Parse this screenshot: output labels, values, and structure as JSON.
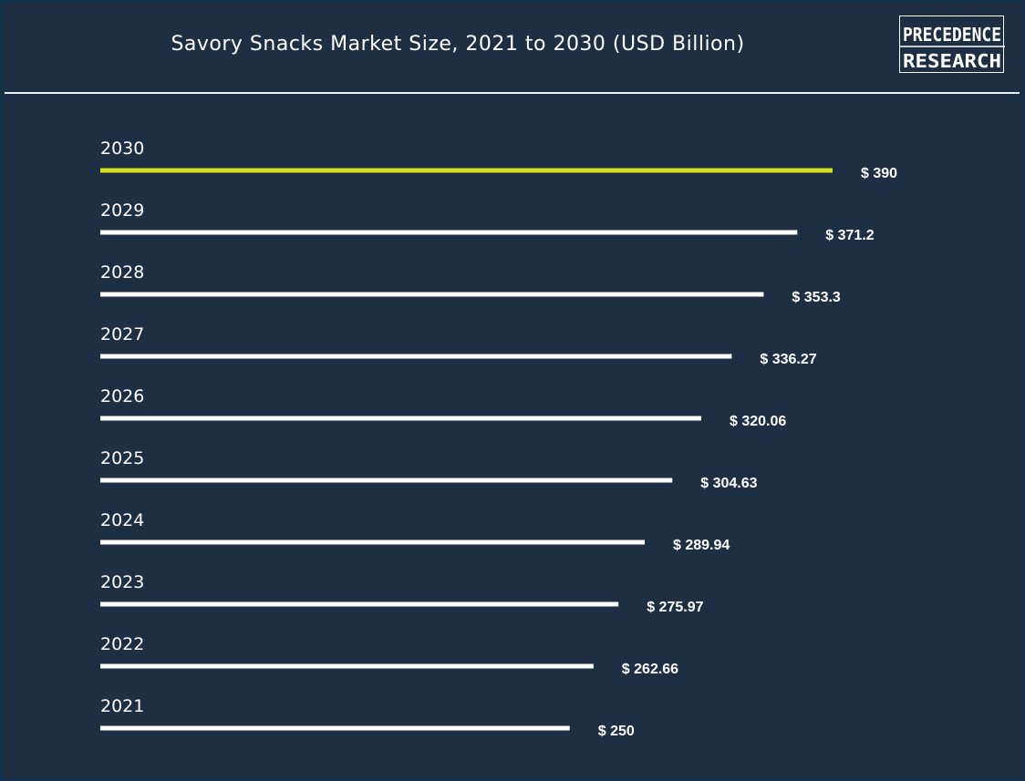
{
  "chart_data": {
    "type": "bar",
    "orientation": "horizontal",
    "title": "Savory Snacks Market Size, 2021 to 2030 (USD Billion)",
    "xlabel": "",
    "ylabel": "",
    "categories": [
      "2030",
      "2029",
      "2028",
      "2027",
      "2026",
      "2025",
      "2024",
      "2023",
      "2022",
      "2021"
    ],
    "values": [
      390,
      371.2,
      353.3,
      336.27,
      320.06,
      304.63,
      289.94,
      275.97,
      262.66,
      250
    ],
    "value_labels": [
      "$ 390",
      "$ 371.2",
      "$ 353.3",
      "$ 336.27",
      "$ 320.06",
      "$ 304.63",
      "$ 289.94",
      "$ 275.97",
      "$ 262.66",
      "$ 250"
    ],
    "highlight_category": "2030",
    "grid": false,
    "legend": "none"
  },
  "colors": {
    "background": "#1f2f43",
    "bar": "#ffffff",
    "highlight_bar": "#d4e21d",
    "text": "#ffffff"
  },
  "logo": {
    "line1": "PRECEDENCE",
    "line2": "RESEARCH"
  }
}
